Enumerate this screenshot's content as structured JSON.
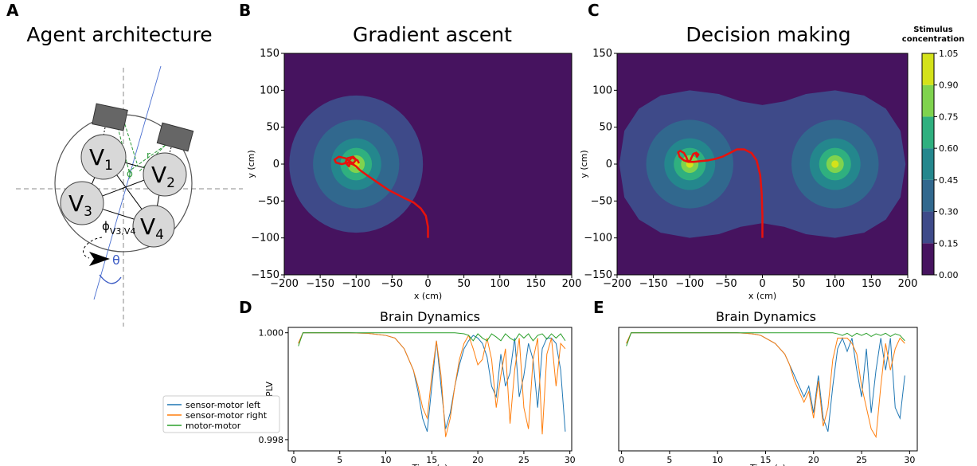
{
  "diagram": {
    "letter": "A",
    "title": "Agent architecture",
    "nodes": [
      {
        "label": "V",
        "sub": "1"
      },
      {
        "label": "V",
        "sub": "2"
      },
      {
        "label": "V",
        "sub": "3"
      },
      {
        "label": "V",
        "sub": "4"
      }
    ],
    "r": "r",
    "phi": "ϕ",
    "edge_label": {
      "symbol": "ϕ",
      "sub": "V3,V4"
    },
    "theta": "θ"
  },
  "colorbar": {
    "title": [
      "Stimulus",
      "concentration"
    ],
    "ticks": [
      {
        "value": 0,
        "label": "0.00"
      },
      {
        "value": 0.15,
        "label": "0.15"
      },
      {
        "value": 0.3,
        "label": "0.30"
      },
      {
        "value": 0.45,
        "label": "0.45"
      },
      {
        "value": 0.6,
        "label": "0.60"
      },
      {
        "value": 0.75,
        "label": "0.75"
      },
      {
        "value": 0.9,
        "label": "0.90"
      },
      {
        "value": 1.05,
        "label": "1.05"
      }
    ],
    "lim": [
      0,
      1.05
    ],
    "colors": [
      "#46135f",
      "#3e4a89",
      "#31688e",
      "#24878d",
      "#2fb07f",
      "#7fd34e",
      "#d4e21a"
    ]
  },
  "legend": {
    "corner": "outside-left"
  },
  "chart_data": [
    {
      "type": "contour",
      "letter": "B",
      "title": "Gradient ascent",
      "xlabel": "x (cm)",
      "ylabel": "y (cm)",
      "xlim": [
        -200,
        200
      ],
      "ylim": [
        -150,
        150
      ],
      "xticks": [
        {
          "value": -200,
          "label": "−200"
        },
        {
          "value": -150,
          "label": "−150"
        },
        {
          "value": -100,
          "label": "−100"
        },
        {
          "value": -50,
          "label": "−50"
        },
        0,
        50,
        100,
        150,
        200
      ],
      "yticks": [
        {
          "value": -150,
          "label": "−150"
        },
        {
          "value": -100,
          "label": "−100"
        },
        {
          "value": -50,
          "label": "−50"
        },
        0,
        50,
        100,
        150
      ],
      "rings": [
        {
          "center": [
            -100,
            0
          ],
          "radii": [
            93,
            60,
            35,
            22,
            12,
            5
          ]
        }
      ],
      "trajectory": {
        "color": "#e8120c",
        "x": [
          0,
          0,
          -3,
          -10,
          -20,
          -35,
          -55,
          -70,
          -85,
          -95,
          -100,
          -105,
          -112,
          -120,
          -128,
          -130,
          -124,
          -115,
          -108,
          -110,
          -115,
          -112,
          -104,
          -100,
          -104,
          -110,
          -106,
          -98,
          -96
        ],
        "y": [
          -100,
          -85,
          -70,
          -60,
          -52,
          -45,
          -35,
          -25,
          -15,
          -8,
          -3,
          0,
          2,
          0,
          2,
          6,
          10,
          8,
          3,
          -3,
          2,
          8,
          10,
          6,
          1,
          4,
          9,
          5,
          1
        ]
      }
    },
    {
      "type": "contour",
      "letter": "C",
      "title": "Decision making",
      "xlabel": "x (cm)",
      "ylabel": "y (cm)",
      "xlim": [
        -200,
        200
      ],
      "ylim": [
        -150,
        150
      ],
      "xticks": [
        {
          "value": -200,
          "label": "−200"
        },
        {
          "value": -150,
          "label": "−150"
        },
        {
          "value": -100,
          "label": "−100"
        },
        {
          "value": -50,
          "label": "−50"
        },
        0,
        50,
        100,
        150,
        200
      ],
      "yticks": [
        {
          "value": -150,
          "label": "−150"
        },
        {
          "value": -100,
          "label": "−100"
        },
        {
          "value": -50,
          "label": "−50"
        },
        0,
        50,
        100,
        150
      ],
      "envelope": {
        "x": [
          -197,
          -190,
          -170,
          -140,
          -100,
          -60,
          -30,
          0,
          30,
          60,
          100,
          140,
          170,
          190,
          197,
          190,
          170,
          140,
          100,
          60,
          30,
          0,
          -30,
          -60,
          -100,
          -140,
          -170,
          -190
        ],
        "y": [
          0,
          -45,
          -75,
          -93,
          -100,
          -95,
          -85,
          -80,
          -85,
          -95,
          -100,
          -93,
          -75,
          -45,
          0,
          45,
          75,
          93,
          100,
          95,
          85,
          80,
          85,
          95,
          100,
          93,
          75,
          45
        ]
      },
      "rings": [
        {
          "center": [
            -100,
            0
          ],
          "radii": [
            null,
            60,
            35,
            22,
            12,
            5
          ]
        },
        {
          "center": [
            100,
            0
          ],
          "radii": [
            null,
            60,
            35,
            22,
            12,
            5
          ]
        }
      ],
      "trajectory": {
        "color": "#e8120c",
        "x": [
          0,
          0,
          -1,
          -3,
          -8,
          -15,
          -25,
          -35,
          -45,
          -55,
          -65,
          -75,
          -85,
          -95,
          -102,
          -108,
          -114,
          -116,
          -113,
          -108,
          -105,
          -103,
          -100,
          -98,
          -95,
          -92,
          -90,
          -88,
          -92
        ],
        "y": [
          -100,
          -70,
          -40,
          -15,
          5,
          15,
          20,
          20,
          15,
          10,
          7,
          5,
          4,
          3,
          3,
          5,
          10,
          16,
          18,
          15,
          10,
          5,
          3,
          8,
          14,
          15,
          10,
          13,
          16
        ]
      }
    },
    {
      "type": "line",
      "letter": "D",
      "title": "Brain Dynamics",
      "xlabel": "Time (s)",
      "ylabel": "PLV",
      "xlim": [
        -0.6,
        30.2
      ],
      "ylim": [
        0.99779,
        1.0001
      ],
      "xticks": [
        0,
        5,
        10,
        15,
        20,
        25,
        30
      ],
      "yticks": [
        0.998,
        {
          "value": 1,
          "label": "1.000"
        }
      ],
      "x": [
        0.5,
        1,
        2,
        4,
        6,
        8,
        10,
        11,
        12,
        13,
        13.5,
        14,
        14.5,
        15,
        15.5,
        16,
        16.5,
        17,
        17.5,
        18,
        18.5,
        19,
        19.5,
        20,
        20.5,
        21,
        21.5,
        22,
        22.5,
        23,
        23.5,
        24,
        24.5,
        25,
        25.5,
        26,
        26.5,
        27,
        27.5,
        28,
        28.5,
        29,
        29.5
      ],
      "series": [
        {
          "name": "sensor-motor left",
          "color": "#1f77b4",
          "values": [
            0.9998,
            1,
            1,
            1,
            1,
            0.99999,
            0.99995,
            0.9999,
            0.9997,
            0.9993,
            0.9989,
            0.9984,
            0.99815,
            0.999,
            0.99985,
            0.999,
            0.9982,
            0.9985,
            0.999,
            0.9994,
            0.9997,
            0.99985,
            0.99995,
            0.9999,
            0.9998,
            0.99955,
            0.999,
            0.9988,
            0.9996,
            0.999,
            0.99925,
            0.9999,
            0.9988,
            0.9992,
            0.9998,
            0.9995,
            0.9986,
            0.9997,
            0.9999,
            0.9999,
            0.9998,
            0.9993,
            0.99815
          ]
        },
        {
          "name": "sensor-motor right",
          "color": "#ff7f0e",
          "values": [
            0.9998,
            1,
            1,
            1,
            1,
            0.99999,
            0.99995,
            0.9999,
            0.9997,
            0.9993,
            0.999,
            0.9986,
            0.9984,
            0.9992,
            0.99985,
            0.9992,
            0.99805,
            0.9984,
            0.999,
            0.9995,
            0.9998,
            0.99995,
            0.9997,
            0.9994,
            0.9995,
            0.9999,
            0.9995,
            0.9986,
            0.9992,
            0.9997,
            0.9983,
            0.9993,
            0.9999,
            0.9986,
            0.9982,
            0.9995,
            0.9999,
            0.9981,
            0.9996,
            0.9999,
            0.999,
            0.9998,
            0.9997
          ]
        },
        {
          "name": "motor-motor",
          "color": "#2ca02c",
          "values": [
            0.99975,
            1,
            1,
            1,
            1,
            1,
            1,
            1,
            1,
            1,
            1,
            1,
            1,
            1,
            1,
            1,
            1,
            1,
            1,
            0.99999,
            0.99998,
            0.99995,
            0.99985,
            0.99998,
            0.9999,
            0.99985,
            0.99998,
            0.99992,
            0.99985,
            0.99998,
            0.9999,
            0.99985,
            0.99998,
            0.9999,
            0.99998,
            0.99985,
            0.99995,
            0.99998,
            0.99988,
            0.99998,
            0.9999,
            0.99998,
            0.99985
          ]
        }
      ]
    },
    {
      "type": "line",
      "letter": "E",
      "title": "Brain Dynamics",
      "xlabel": "Time (s)",
      "xlim": [
        -0.3,
        30.8
      ],
      "ylim": [
        0.99779,
        1.0001
      ],
      "xticks": [
        0,
        5,
        10,
        15,
        20,
        25,
        30
      ],
      "x": [
        0.5,
        1,
        2,
        4,
        6,
        8,
        10,
        11,
        12,
        13,
        13.5,
        14,
        14.5,
        15,
        15.5,
        16,
        16.5,
        17,
        17.5,
        18,
        18.5,
        19,
        19.5,
        20,
        20.5,
        21,
        21.5,
        22,
        22.5,
        23,
        23.5,
        24,
        24.5,
        25,
        25.5,
        26,
        26.5,
        27,
        27.5,
        28,
        28.5,
        29,
        29.5
      ],
      "series": [
        {
          "color": "#1f77b4",
          "values": [
            0.9998,
            1,
            1,
            1,
            1,
            1,
            1,
            1,
            1,
            0.99999,
            0.99998,
            0.99997,
            0.99995,
            0.9999,
            0.99985,
            0.9998,
            0.9997,
            0.9996,
            0.9994,
            0.9992,
            0.999,
            0.9988,
            0.999,
            0.9985,
            0.9992,
            0.9984,
            0.99815,
            0.999,
            0.9997,
            0.9999,
            0.99965,
            0.9999,
            0.9993,
            0.9988,
            0.9997,
            0.9985,
            0.9993,
            0.9999,
            0.9993,
            0.9999,
            0.9986,
            0.9984,
            0.9992
          ]
        },
        {
          "color": "#ff7f0e",
          "values": [
            0.9998,
            1,
            1,
            1,
            1,
            1,
            1,
            1,
            1,
            0.99999,
            0.99998,
            0.99997,
            0.99995,
            0.9999,
            0.99985,
            0.9998,
            0.9997,
            0.9996,
            0.9994,
            0.9991,
            0.9989,
            0.9987,
            0.9989,
            0.9984,
            0.9991,
            0.99825,
            0.9986,
            0.9995,
            0.9999,
            0.9999,
            0.9999,
            0.9998,
            0.9996,
            0.999,
            0.9986,
            0.9982,
            0.99805,
            0.999,
            0.9998,
            0.9993,
            0.9997,
            0.9999,
            0.9998
          ]
        },
        {
          "color": "#2ca02c",
          "values": [
            0.99975,
            1,
            1,
            1,
            1,
            1,
            1,
            1,
            1,
            1,
            1,
            1,
            1,
            1,
            1,
            1,
            1,
            1,
            1,
            1,
            1,
            1,
            1,
            1,
            1,
            1,
            1,
            1,
            0.99998,
            0.99995,
            0.99999,
            0.99993,
            0.99999,
            0.99995,
            0.99999,
            0.99993,
            0.99998,
            0.99995,
            0.99999,
            0.99993,
            0.99998,
            0.99995,
            0.99985
          ]
        }
      ]
    }
  ]
}
